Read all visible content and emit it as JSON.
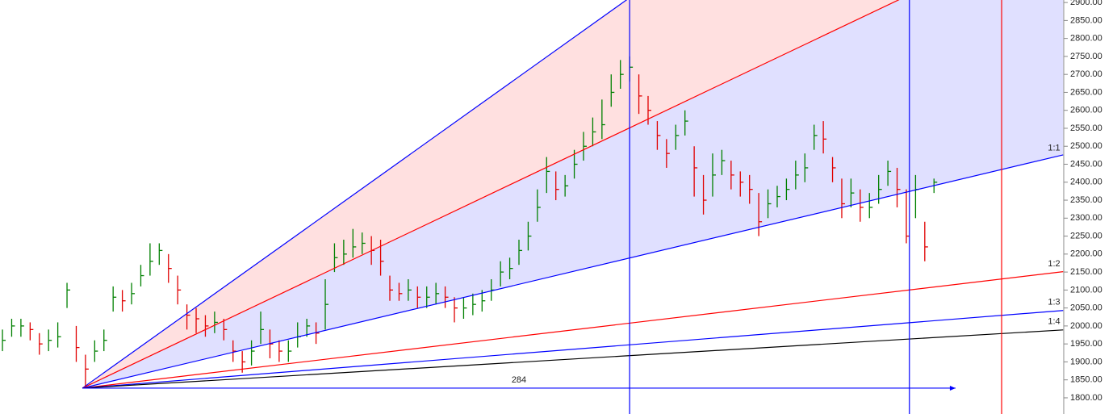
{
  "chart_data": {
    "type": "hlc",
    "up_color": "#008000",
    "down_color": "#e00000",
    "xlim": [
      -26.8,
      319.2
    ],
    "ylim": [
      1755,
      2907
    ],
    "yticks": [
      {
        "value": 1800,
        "label": "1800.00"
      },
      {
        "value": 1850,
        "label": "1850.00"
      },
      {
        "value": 1900,
        "label": "1900.00"
      },
      {
        "value": 1950,
        "label": "1950.00"
      },
      {
        "value": 2000,
        "label": "2000.00"
      },
      {
        "value": 2050,
        "label": "2050.00"
      },
      {
        "value": 2100,
        "label": "2100.00"
      },
      {
        "value": 2150,
        "label": "2150.00"
      },
      {
        "value": 2200,
        "label": "2200.00"
      },
      {
        "value": 2250,
        "label": "2250.00"
      },
      {
        "value": 2300,
        "label": "2300.00"
      },
      {
        "value": 2350,
        "label": "2350.00"
      },
      {
        "value": 2400,
        "label": "2400.00"
      },
      {
        "value": 2450,
        "label": "2450.00"
      },
      {
        "value": 2500,
        "label": "2500.00"
      },
      {
        "value": 2550,
        "label": "2550.00"
      },
      {
        "value": 2600,
        "label": "2600.00"
      },
      {
        "value": 2650,
        "label": "2650.00"
      },
      {
        "value": 2700,
        "label": "2700.00"
      },
      {
        "value": 2750,
        "label": "2750.00"
      },
      {
        "value": 2800,
        "label": "2800.00"
      },
      {
        "value": 2850,
        "label": "2850.00"
      },
      {
        "value": 2900,
        "label": "2900.00"
      }
    ],
    "x": [
      -26,
      -23,
      -20,
      -17,
      -14,
      -11,
      -8,
      -5,
      -2,
      1,
      4,
      7,
      10,
      13,
      16,
      19,
      22,
      25,
      28,
      31,
      34,
      37,
      40,
      43,
      46,
      49,
      52,
      55,
      58,
      61,
      64,
      67,
      70,
      73,
      76,
      79,
      82,
      85,
      88,
      91,
      94,
      97,
      100,
      103,
      106,
      109,
      112,
      115,
      118,
      121,
      124,
      127,
      130,
      133,
      136,
      139,
      142,
      145,
      148,
      151,
      154,
      157,
      160,
      163,
      166,
      169,
      172,
      175,
      178,
      181,
      184,
      187,
      190,
      193,
      196,
      199,
      202,
      205,
      208,
      211,
      214,
      217,
      220,
      223,
      226,
      229,
      232,
      235,
      238,
      241,
      244,
      247,
      250,
      253,
      256,
      259,
      262,
      265,
      268,
      271,
      274,
      277
    ],
    "high": [
      1990,
      2020,
      2020,
      2010,
      1980,
      1990,
      2010,
      2120,
      2000,
      1920,
      1960,
      1990,
      2110,
      2100,
      2120,
      2170,
      2230,
      2230,
      2200,
      2140,
      2060,
      2050,
      2030,
      2040,
      2020,
      1960,
      1930,
      1960,
      2040,
      1990,
      1960,
      1960,
      2010,
      2020,
      2010,
      2130,
      2230,
      2240,
      2270,
      2260,
      2250,
      2240,
      2140,
      2120,
      2130,
      2110,
      2110,
      2120,
      2110,
      2080,
      2080,
      2090,
      2100,
      2130,
      2180,
      2190,
      2240,
      2290,
      2380,
      2470,
      2430,
      2420,
      2490,
      2540,
      2580,
      2630,
      2700,
      2740,
      2750,
      2700,
      2640,
      2570,
      2520,
      2560,
      2600,
      2500,
      2420,
      2480,
      2490,
      2460,
      2430,
      2420,
      2370,
      2380,
      2390,
      2410,
      2460,
      2480,
      2560,
      2570,
      2470,
      2410,
      2410,
      2380,
      2370,
      2420,
      2460,
      2440,
      2380,
      2420,
      2290,
      2410
    ],
    "low": [
      1930,
      1970,
      1970,
      1960,
      1920,
      1930,
      1940,
      2050,
      1900,
      1830,
      1900,
      1930,
      2040,
      2040,
      2060,
      2110,
      2140,
      2170,
      2120,
      2060,
      1990,
      1980,
      1970,
      1980,
      1960,
      1900,
      1870,
      1890,
      1950,
      1910,
      1900,
      1900,
      1940,
      1970,
      1950,
      1990,
      2150,
      2170,
      2190,
      2200,
      2170,
      2140,
      2070,
      2070,
      2070,
      2050,
      2050,
      2060,
      2050,
      2010,
      2020,
      2030,
      2040,
      2070,
      2110,
      2130,
      2170,
      2210,
      2290,
      2370,
      2350,
      2360,
      2410,
      2460,
      2500,
      2520,
      2610,
      2660,
      2680,
      2590,
      2560,
      2490,
      2440,
      2490,
      2530,
      2360,
      2310,
      2360,
      2420,
      2380,
      2360,
      2340,
      2250,
      2300,
      2330,
      2350,
      2380,
      2400,
      2490,
      2480,
      2400,
      2300,
      2330,
      2290,
      2300,
      2340,
      2390,
      2330,
      2230,
      2300,
      2180,
      2370
    ],
    "close": [
      1960,
      2000,
      2000,
      1990,
      1950,
      1960,
      1970,
      2100,
      1940,
      1880,
      1930,
      1960,
      2080,
      2070,
      2090,
      2140,
      2180,
      2210,
      2160,
      2100,
      2030,
      2020,
      2000,
      2010,
      1990,
      1930,
      1900,
      1930,
      1990,
      1950,
      1930,
      1930,
      1970,
      2000,
      1980,
      2060,
      2190,
      2200,
      2220,
      2230,
      2210,
      2180,
      2100,
      2090,
      2100,
      2080,
      2080,
      2090,
      2080,
      2050,
      2050,
      2060,
      2070,
      2100,
      2150,
      2160,
      2210,
      2250,
      2330,
      2430,
      2380,
      2390,
      2450,
      2500,
      2540,
      2560,
      2650,
      2700,
      2720,
      2640,
      2600,
      2530,
      2480,
      2530,
      2570,
      2440,
      2350,
      2420,
      2460,
      2420,
      2400,
      2380,
      2290,
      2340,
      2360,
      2380,
      2420,
      2440,
      2530,
      2520,
      2440,
      2340,
      2370,
      2330,
      2330,
      2380,
      2430,
      2380,
      2250,
      2380,
      2220,
      2400
    ],
    "fan": {
      "origin": {
        "x": 0,
        "y": 1827
      },
      "lines": [
        {
          "x": 319,
          "y": 3774,
          "color": "#0000ff",
          "fill": "#ffe0e0"
        },
        {
          "x": 319,
          "y": 3125,
          "color": "#ff0000",
          "fill": "#e0e0ff"
        },
        {
          "x": 319,
          "y": 2476,
          "color": "#0000ff",
          "label": "1:1"
        },
        {
          "x": 319,
          "y": 2151,
          "color": "#ff0000",
          "label": "1:2"
        },
        {
          "x": 319,
          "y": 2043,
          "color": "#0000ff",
          "label": "1:3"
        },
        {
          "x": 319,
          "y": 1989,
          "color": "#000000",
          "label": "1:4"
        }
      ]
    },
    "vlines": [
      {
        "x": 178,
        "color": "#0000ff"
      },
      {
        "x": 269,
        "color": "#0000ff"
      },
      {
        "x": 299,
        "color": "#ff0000"
      }
    ],
    "arrow": {
      "x1": 0,
      "x2": 284,
      "y": 1827,
      "label": "284",
      "color": "#0000ff"
    }
  }
}
